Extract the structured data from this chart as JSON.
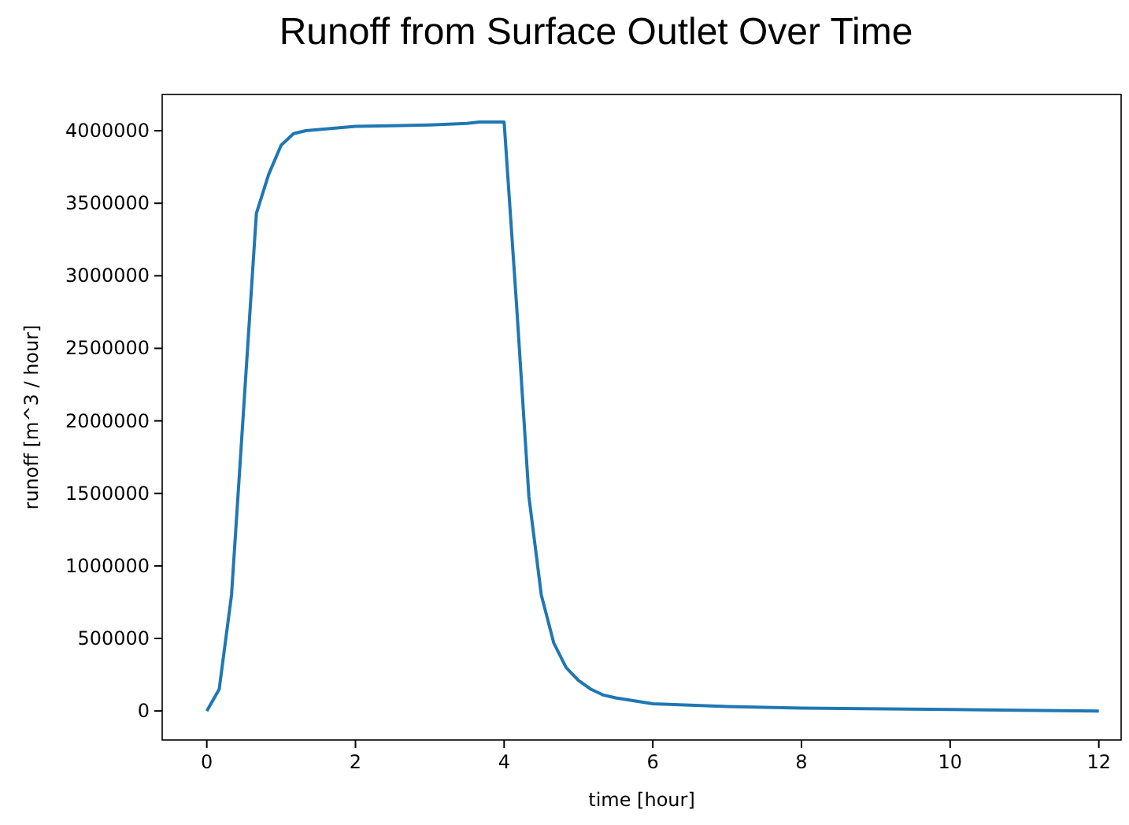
{
  "chart_data": {
    "type": "line",
    "title": "Runoff from Surface Outlet Over Time",
    "xlabel": "time [hour]",
    "ylabel": "runoff [m^3 / hour]",
    "x": [
      0,
      0.167,
      0.333,
      0.667,
      0.833,
      1.0,
      1.167,
      1.333,
      2,
      3,
      3.5,
      3.667,
      4.0,
      4.167,
      4.333,
      4.5,
      4.667,
      4.833,
      5,
      5.167,
      5.333,
      5.5,
      6,
      7,
      8,
      10,
      12
    ],
    "series": [
      {
        "color": "#1f77b4",
        "values": [
          0,
          150000,
          800000,
          3430000,
          3700000,
          3900000,
          3980000,
          4000000,
          4030000,
          4040000,
          4050000,
          4060000,
          4060000,
          2800000,
          1480000,
          800000,
          470000,
          300000,
          210000,
          150000,
          110000,
          90000,
          50000,
          30000,
          20000,
          10000,
          0
        ]
      }
    ],
    "xlim": [
      -0.6,
      12.3
    ],
    "ylim": [
      -200000,
      4250000
    ],
    "xticks": [
      0,
      2,
      4,
      6,
      8,
      10,
      12
    ],
    "yticks": [
      0,
      500000,
      1000000,
      1500000,
      2000000,
      2500000,
      3000000,
      3500000,
      4000000
    ],
    "grid": false
  }
}
